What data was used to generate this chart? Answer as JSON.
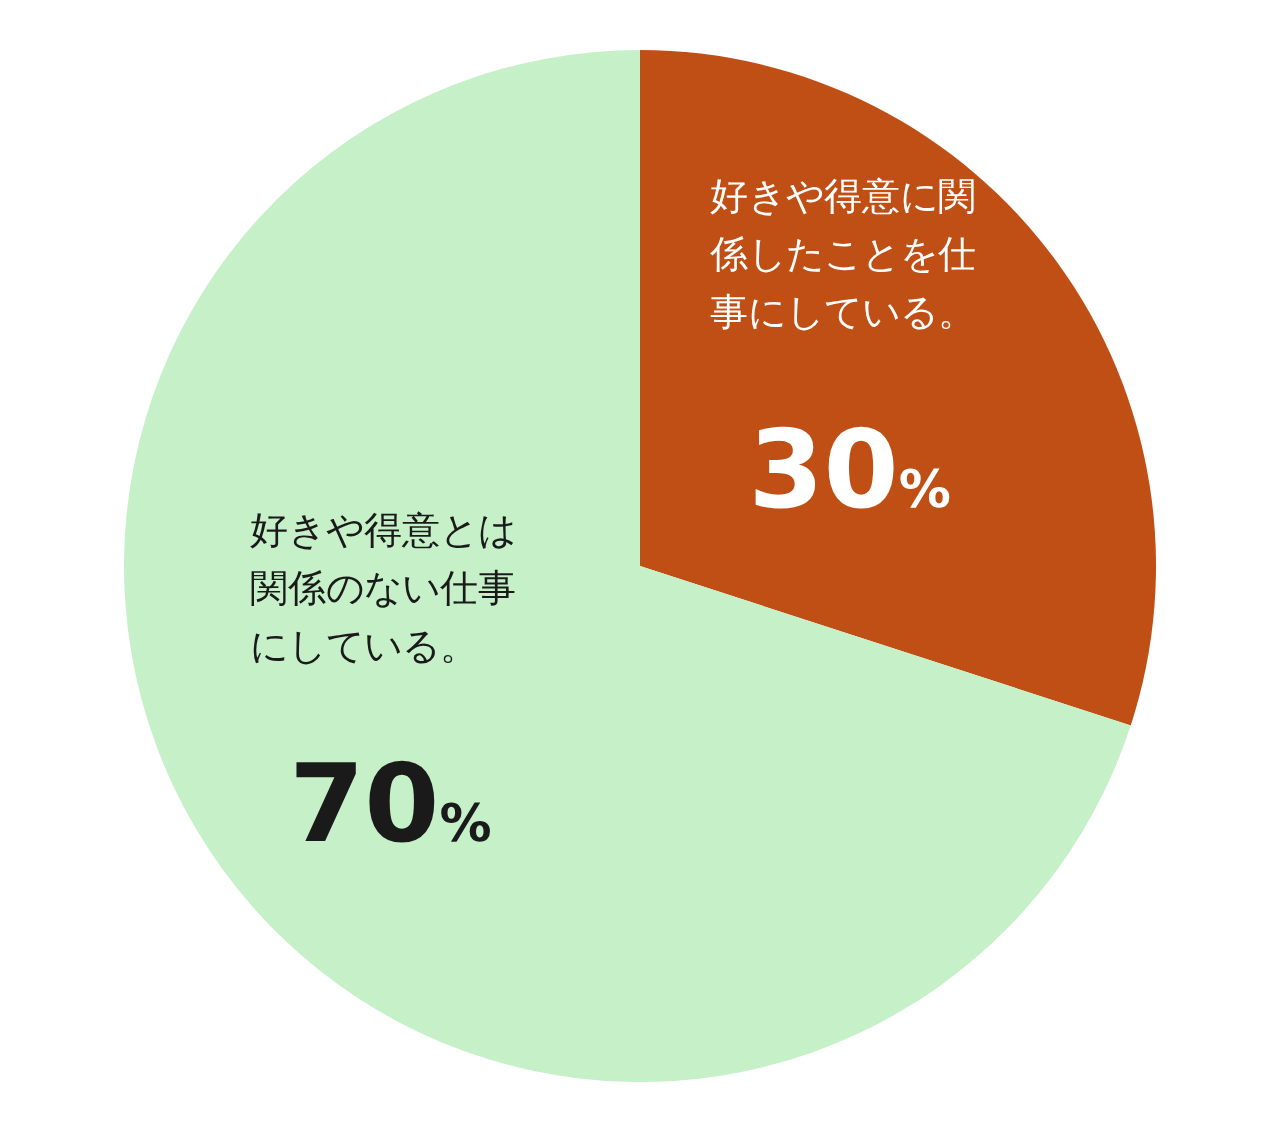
{
  "chart_data": {
    "type": "pie",
    "categories": [
      "好きや得意に関係したことを仕事にしている。",
      "好きや得意とは関係のない仕事にしている。"
    ],
    "values": [
      30,
      70
    ],
    "colors": [
      "#c04f15",
      "#c6f0c8"
    ],
    "value_labels": [
      "30%",
      "70%"
    ]
  }
}
